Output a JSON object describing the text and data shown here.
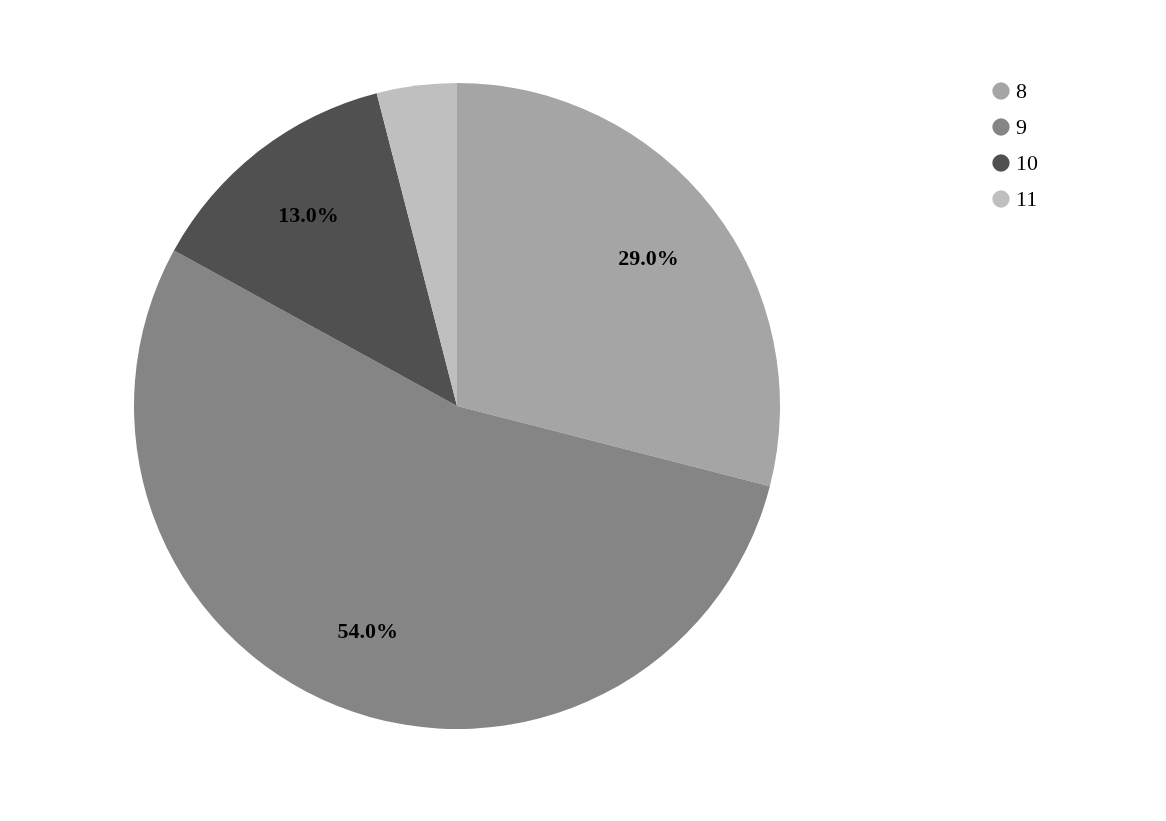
{
  "chart_data": {
    "type": "pie",
    "categories": [
      "8",
      "9",
      "10",
      "11"
    ],
    "values": [
      29,
      54,
      13,
      4
    ],
    "colors": [
      "#a5a5a5",
      "#858585",
      "#505050",
      "#bfbfbf"
    ],
    "value_labels": [
      "29.0%",
      "54.0%",
      "13.0%",
      null
    ],
    "legend": "top right"
  }
}
